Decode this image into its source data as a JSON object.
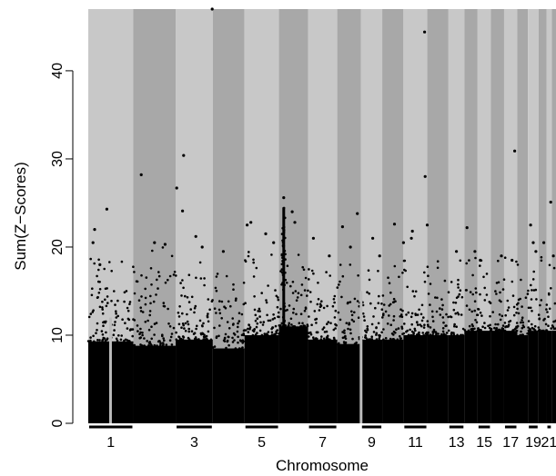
{
  "chart_data": {
    "type": "scatter",
    "title": "",
    "xlabel": "Chromosome",
    "ylabel": "Sum(Z−Scores)",
    "ylim": [
      0,
      47
    ],
    "yticks": [
      0,
      10,
      20,
      30,
      40
    ],
    "chromosomes": [
      {
        "chr": "1",
        "label": "1",
        "band": "light",
        "bg": "#c8c8c8",
        "start": 0,
        "end": 8.5,
        "bulk_top": 9.3,
        "spread_top": 15.5
      },
      {
        "chr": "2",
        "label": "",
        "band": "dark",
        "bg": "#a8a8a8",
        "start": 8.5,
        "end": 16.5,
        "bulk_top": 8.8,
        "spread_top": 16.5
      },
      {
        "chr": "3",
        "label": "3",
        "band": "light",
        "bg": "#c8c8c8",
        "start": 16.5,
        "end": 23.5,
        "bulk_top": 9.5,
        "spread_top": 15.0
      },
      {
        "chr": "4",
        "label": "",
        "band": "dark",
        "bg": "#a8a8a8",
        "start": 23.5,
        "end": 29.5,
        "bulk_top": 8.5,
        "spread_top": 14.0
      },
      {
        "chr": "5",
        "label": "5",
        "band": "light",
        "bg": "#c8c8c8",
        "start": 29.5,
        "end": 36,
        "bulk_top": 10.0,
        "spread_top": 16.0
      },
      {
        "chr": "6",
        "label": "",
        "band": "dark",
        "bg": "#a8a8a8",
        "start": 36,
        "end": 41.5,
        "bulk_top": 11.0,
        "spread_top": 16.5
      },
      {
        "chr": "7",
        "label": "7",
        "band": "light",
        "bg": "#c8c8c8",
        "start": 41.5,
        "end": 47,
        "bulk_top": 9.5,
        "spread_top": 14.5
      },
      {
        "chr": "8",
        "label": "",
        "band": "dark",
        "bg": "#a8a8a8",
        "start": 47,
        "end": 51.5,
        "bulk_top": 9.0,
        "spread_top": 14.5
      },
      {
        "chr": "9",
        "label": "9",
        "band": "light",
        "bg": "#c8c8c8",
        "start": 51.5,
        "end": 55.5,
        "bulk_top": 9.5,
        "spread_top": 14.0
      },
      {
        "chr": "10",
        "label": "",
        "band": "dark",
        "bg": "#a8a8a8",
        "start": 55.5,
        "end": 59.5,
        "bulk_top": 9.5,
        "spread_top": 14.5
      },
      {
        "chr": "11",
        "label": "11",
        "band": "light",
        "bg": "#c8c8c8",
        "start": 59.5,
        "end": 64,
        "bulk_top": 10.0,
        "spread_top": 15.0
      },
      {
        "chr": "12",
        "label": "",
        "band": "dark",
        "bg": "#a8a8a8",
        "start": 64,
        "end": 68,
        "bulk_top": 10.0,
        "spread_top": 15.0
      },
      {
        "chr": "13",
        "label": "13",
        "band": "light",
        "bg": "#c8c8c8",
        "start": 68,
        "end": 71,
        "bulk_top": 10.0,
        "spread_top": 15.5
      },
      {
        "chr": "14",
        "label": "",
        "band": "dark",
        "bg": "#a8a8a8",
        "start": 71,
        "end": 73.5,
        "bulk_top": 10.5,
        "spread_top": 16.0
      },
      {
        "chr": "15",
        "label": "15",
        "band": "light",
        "bg": "#c8c8c8",
        "start": 73.5,
        "end": 76,
        "bulk_top": 10.5,
        "spread_top": 15.5
      },
      {
        "chr": "16",
        "label": "",
        "band": "dark",
        "bg": "#a8a8a8",
        "start": 76,
        "end": 78.5,
        "bulk_top": 10.5,
        "spread_top": 15.0
      },
      {
        "chr": "17",
        "label": "17",
        "band": "light",
        "bg": "#c8c8c8",
        "start": 78.5,
        "end": 81,
        "bulk_top": 10.5,
        "spread_top": 15.5
      },
      {
        "chr": "18",
        "label": "",
        "band": "dark",
        "bg": "#a8a8a8",
        "start": 81,
        "end": 83,
        "bulk_top": 10.0,
        "spread_top": 14.5
      },
      {
        "chr": "19",
        "label": "19",
        "band": "light",
        "bg": "#c8c8c8",
        "start": 83,
        "end": 85,
        "bulk_top": 10.5,
        "spread_top": 15.5
      },
      {
        "chr": "20",
        "label": "",
        "band": "dark",
        "bg": "#a8a8a8",
        "start": 85,
        "end": 86.5,
        "bulk_top": 10.5,
        "spread_top": 15.5
      },
      {
        "chr": "21",
        "label": "21",
        "band": "light",
        "bg": "#c8c8c8",
        "start": 86.5,
        "end": 87.5,
        "bulk_top": 10.5,
        "spread_top": 15.5
      },
      {
        "chr": "22",
        "label": "",
        "band": "dark",
        "bg": "#a8a8a8",
        "start": 87.5,
        "end": 88.3,
        "bulk_top": 10.5,
        "spread_top": 16.0
      }
    ],
    "x_range": [
      0,
      88.3
    ],
    "outliers": [
      {
        "x": 1.2,
        "y": 22.0
      },
      {
        "x": 0.9,
        "y": 20.5
      },
      {
        "x": 3.5,
        "y": 24.3
      },
      {
        "x": 2.2,
        "y": 18.0
      },
      {
        "x": 10.0,
        "y": 28.2
      },
      {
        "x": 12.5,
        "y": 20.5
      },
      {
        "x": 14.5,
        "y": 20.3
      },
      {
        "x": 16.7,
        "y": 26.7
      },
      {
        "x": 18.0,
        "y": 30.4
      },
      {
        "x": 17.8,
        "y": 24.1
      },
      {
        "x": 20.3,
        "y": 21.2
      },
      {
        "x": 21.5,
        "y": 20.0
      },
      {
        "x": 23.4,
        "y": 47.0
      },
      {
        "x": 25.5,
        "y": 19.5
      },
      {
        "x": 30.0,
        "y": 22.5
      },
      {
        "x": 30.7,
        "y": 22.8
      },
      {
        "x": 33.5,
        "y": 21.5
      },
      {
        "x": 35.0,
        "y": 20.5
      },
      {
        "x": 36.9,
        "y": 25.6
      },
      {
        "x": 38.5,
        "y": 24.0
      },
      {
        "x": 39.0,
        "y": 22.8
      },
      {
        "x": 42.5,
        "y": 21.0
      },
      {
        "x": 45.5,
        "y": 19.0
      },
      {
        "x": 48.0,
        "y": 22.3
      },
      {
        "x": 50.8,
        "y": 23.8
      },
      {
        "x": 49.5,
        "y": 20.0
      },
      {
        "x": 53.7,
        "y": 21.0
      },
      {
        "x": 55.0,
        "y": 19.0
      },
      {
        "x": 57.8,
        "y": 22.6
      },
      {
        "x": 59.5,
        "y": 20.5
      },
      {
        "x": 61.0,
        "y": 21.0
      },
      {
        "x": 61.2,
        "y": 21.8
      },
      {
        "x": 63.5,
        "y": 44.4
      },
      {
        "x": 63.6,
        "y": 28.0
      },
      {
        "x": 64.0,
        "y": 22.5
      },
      {
        "x": 69.5,
        "y": 19.5
      },
      {
        "x": 71.5,
        "y": 22.2
      },
      {
        "x": 73.0,
        "y": 19.5
      },
      {
        "x": 74.0,
        "y": 18.5
      },
      {
        "x": 78.0,
        "y": 19.0
      },
      {
        "x": 80.5,
        "y": 30.9
      },
      {
        "x": 80.0,
        "y": 18.5
      },
      {
        "x": 83.5,
        "y": 22.5
      },
      {
        "x": 84.0,
        "y": 20.5
      },
      {
        "x": 84.5,
        "y": 19.5
      },
      {
        "x": 86.0,
        "y": 20.5
      },
      {
        "x": 87.3,
        "y": 25.1
      },
      {
        "x": 87.8,
        "y": 19.0
      }
    ],
    "peak_column": {
      "x": 36.9,
      "y_top": 24.5
    },
    "gaps": [
      {
        "x": 4.2,
        "y_top": 12.0
      },
      {
        "x": 51.5,
        "y_top": 15.0
      }
    ],
    "grid": false,
    "legend": "none"
  }
}
